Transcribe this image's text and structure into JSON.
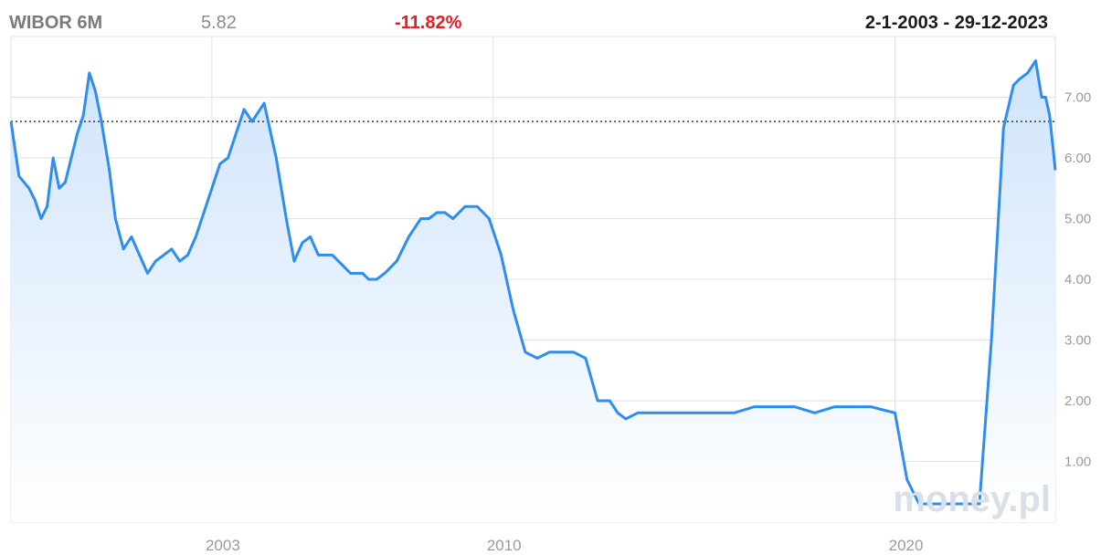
{
  "header": {
    "title": "WIBOR 6M",
    "value": "5.82",
    "change": "-11.82%",
    "date_range": "2-1-2003 - 29-12-2023"
  },
  "watermark": "money.pl",
  "colors": {
    "line": "#2f8deb",
    "fill_top": "#cfe4fb",
    "fill_bottom": "#ffffff",
    "grid": "#e1e1e1",
    "reference": "#333333"
  },
  "chart_data": {
    "type": "area",
    "title": "WIBOR 6M",
    "xlabel": "",
    "ylabel": "",
    "xlim": [
      1998.0,
      2023.99
    ],
    "ylim": [
      0,
      8.0
    ],
    "y_ticks": [
      "1.00",
      "2.00",
      "3.00",
      "4.00",
      "5.00",
      "6.00",
      "7.00"
    ],
    "x_ticks": [
      "2003",
      "2010",
      "2020"
    ],
    "reference_line": 6.6,
    "grid": true,
    "series": [
      {
        "x": [
          1998.0,
          1998.2,
          1998.45,
          1998.6,
          1998.75,
          1998.9,
          1999.05,
          1999.2,
          1999.35,
          1999.5,
          1999.65,
          1999.8,
          1999.95,
          2000.1,
          2000.25,
          2000.45,
          2000.6,
          2000.8,
          2001.0,
          2001.2,
          2001.4,
          2001.6,
          2001.8,
          2002.0,
          2002.2,
          2002.4,
          2002.6,
          2002.8,
          2003.0,
          2003.2,
          2003.4,
          2003.6,
          2003.8,
          2004.0,
          2004.3,
          2004.6,
          2004.85,
          2005.05,
          2005.25,
          2005.45,
          2005.65,
          2005.85,
          2006.0,
          2006.15,
          2006.3,
          2006.45,
          2006.6,
          2006.75,
          2006.9,
          2007.1,
          2007.3,
          2007.6,
          2007.9,
          2008.2,
          2008.4,
          2008.6,
          2008.8,
          2009.0,
          2009.3,
          2009.6,
          2009.9,
          2010.2,
          2010.5,
          2010.8,
          2011.1,
          2011.4,
          2011.7,
          2012.0,
          2012.3,
          2012.6,
          2012.9,
          2013.1,
          2013.3,
          2013.6,
          2014.0,
          2014.5,
          2015.0,
          2015.5,
          2016.0,
          2016.5,
          2017.0,
          2017.5,
          2018.0,
          2018.5,
          2019.0,
          2019.4,
          2019.7,
          2020.0,
          2020.3,
          2020.6,
          2020.9,
          2021.2,
          2021.5,
          2021.8,
          2022.1,
          2022.4,
          2022.7,
          2022.95,
          2023.1,
          2023.3,
          2023.5,
          2023.65,
          2023.75,
          2023.85,
          2023.99
        ],
        "values": [
          6.6,
          5.7,
          5.5,
          5.3,
          5.0,
          5.2,
          6.0,
          5.5,
          5.6,
          6.0,
          6.4,
          6.7,
          7.4,
          7.1,
          6.6,
          5.8,
          5.0,
          4.5,
          4.7,
          4.4,
          4.1,
          4.3,
          4.4,
          4.5,
          4.3,
          4.4,
          4.7,
          5.1,
          5.5,
          5.9,
          6.0,
          6.4,
          6.8,
          6.6,
          6.9,
          6.0,
          5.0,
          4.3,
          4.6,
          4.7,
          4.4,
          4.4,
          4.4,
          4.3,
          4.2,
          4.1,
          4.1,
          4.1,
          4.0,
          4.0,
          4.1,
          4.3,
          4.7,
          5.0,
          5.0,
          5.1,
          5.1,
          5.0,
          5.2,
          5.2,
          5.0,
          4.4,
          3.5,
          2.8,
          2.7,
          2.8,
          2.8,
          2.8,
          2.7,
          2.0,
          2.0,
          1.8,
          1.7,
          1.8,
          1.8,
          1.8,
          1.8,
          1.8,
          1.8,
          1.9,
          1.9,
          1.9,
          1.8,
          1.9,
          1.9,
          1.9,
          1.85,
          1.8,
          0.7,
          0.3,
          0.3,
          0.3,
          0.3,
          0.3,
          0.3,
          3.0,
          6.5,
          7.2,
          7.3,
          7.4,
          7.6,
          7.0,
          7.0,
          6.7,
          5.8
        ]
      }
    ]
  }
}
